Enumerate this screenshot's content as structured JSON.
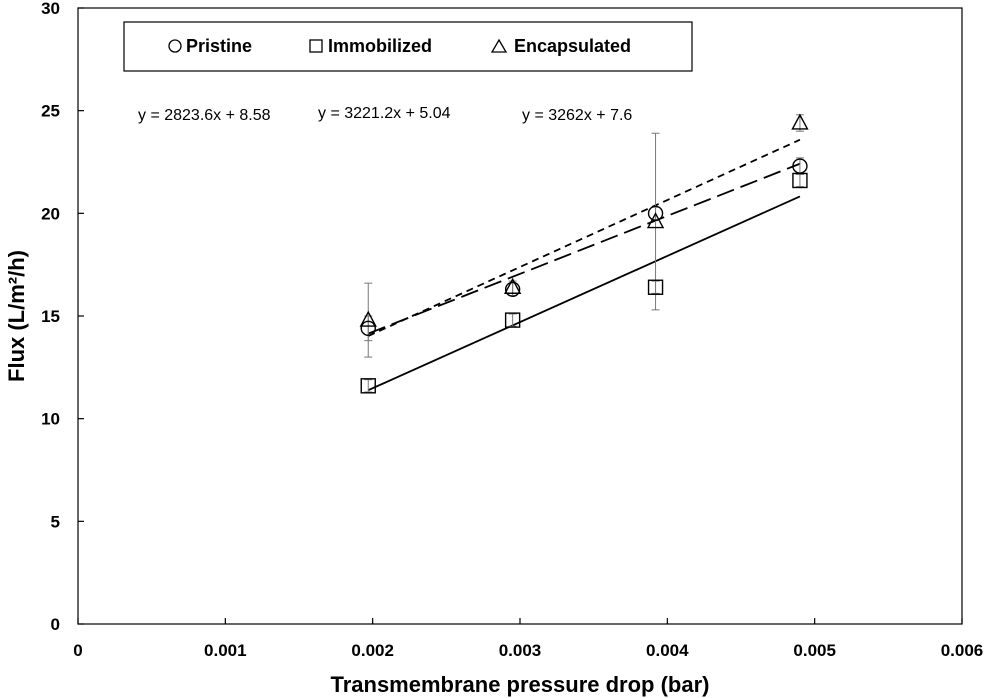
{
  "chart_data": {
    "type": "scatter",
    "title": "",
    "xlabel": "Transmembrane pressure drop (bar)",
    "ylabel": "Flux (L/m²/h)",
    "xlim": [
      0,
      0.006
    ],
    "ylim": [
      0,
      30
    ],
    "xticks": [
      0,
      0.001,
      0.002,
      0.003,
      0.004,
      0.005,
      0.006
    ],
    "xtick_labels": [
      "0",
      "0.001",
      "0.002",
      "0.003",
      "0.004",
      "0.005",
      "0.006"
    ],
    "yticks": [
      0,
      5,
      10,
      15,
      20,
      25,
      30
    ],
    "ytick_labels": [
      "0",
      "5",
      "10",
      "15",
      "20",
      "25",
      "30"
    ],
    "grid": false,
    "legend_position": "top",
    "series": [
      {
        "name": "Pristine",
        "marker": "circle",
        "x": [
          0.00197,
          0.00295,
          0.00392,
          0.0049
        ],
        "y": [
          14.4,
          16.3,
          20.0,
          22.3
        ],
        "error": [
          0.6,
          0.3,
          0.3,
          0.4
        ],
        "trend": {
          "slope": 2823.6,
          "intercept": 8.58,
          "style": "long-dash",
          "x_range": [
            0.00197,
            0.0049
          ]
        }
      },
      {
        "name": "Immobilized",
        "marker": "square",
        "x": [
          0.00197,
          0.00295,
          0.00392,
          0.0049
        ],
        "y": [
          11.6,
          14.8,
          16.4,
          21.6
        ],
        "error": [
          0.3,
          0.3,
          0.3,
          0.3
        ],
        "trend": {
          "slope": 3221.2,
          "intercept": 5.04,
          "style": "solid",
          "x_range": [
            0.00197,
            0.0049
          ]
        }
      },
      {
        "name": "Encapsulated",
        "marker": "triangle",
        "x": [
          0.00197,
          0.00295,
          0.00392,
          0.0049
        ],
        "y": [
          14.8,
          16.4,
          19.6,
          24.4
        ],
        "error": [
          1.8,
          0.3,
          4.3,
          0.4
        ],
        "trend": {
          "slope": 3262,
          "intercept": 7.6,
          "style": "short-dash",
          "x_range": [
            0.00197,
            0.0049
          ]
        }
      }
    ],
    "annotations": [
      "y = 2823.6x + 8.58",
      "y = 3221.2x + 5.04",
      "y = 3262x + 7.6"
    ]
  }
}
